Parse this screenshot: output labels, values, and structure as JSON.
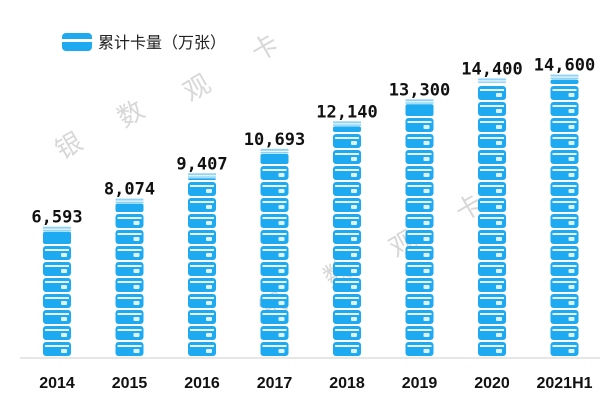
{
  "chart_data": {
    "type": "bar",
    "categories": [
      "2014",
      "2015",
      "2016",
      "2017",
      "2018",
      "2019",
      "2020",
      "2021H1"
    ],
    "value_labels": [
      "6,593",
      "8,074",
      "9,407",
      "10,693",
      "12,140",
      "13,300",
      "14,400",
      "14,600"
    ],
    "series": [
      {
        "name": "累计卡量（万张）",
        "values": [
          6593,
          8074,
          9407,
          10693,
          12140,
          13300,
          14400,
          14600
        ]
      }
    ],
    "ylim": [
      0,
      15000
    ],
    "grid": false,
    "legend_position": "top-left",
    "colors": {
      "bar": "#1eaaf1",
      "bar_light": "#8fd4f8",
      "text": "#111111"
    }
  },
  "watermark": {
    "chars": [
      "银",
      "数",
      "观",
      "卡"
    ]
  }
}
